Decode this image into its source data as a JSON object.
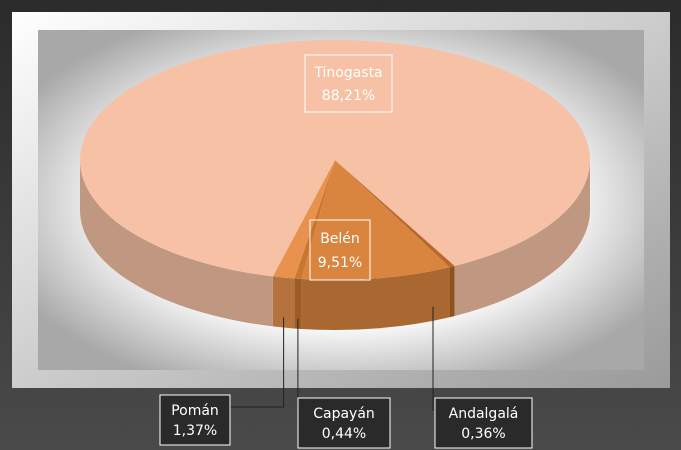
{
  "chart_data": {
    "type": "pie3d",
    "categories": [
      "Andalgalá",
      "Belén",
      "Capayán",
      "Pomán",
      "Tinogasta"
    ],
    "values": [
      0.36,
      9.51,
      0.44,
      1.37,
      88.21
    ],
    "value_labels": [
      "0,36%",
      "9,51%",
      "0,44%",
      "1,37%",
      "88,21%"
    ],
    "colors": [
      "#b8682a",
      "#d9843f",
      "#c9762f",
      "#e8924e",
      "#f6c1a4"
    ]
  }
}
